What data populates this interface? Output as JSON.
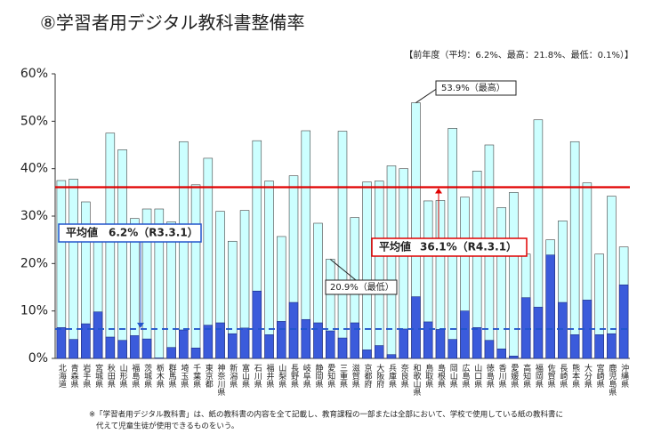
{
  "chart_data": {
    "type": "bar",
    "title": "⑧学習者用デジタル教科書整備率",
    "note": "【前年度（平均：6.2%、最高：21.8%、最低：0.1%）】",
    "footnote": [
      "※「学習者用デジタル教科書」は、紙の教科書の内容を全て記載し、教育課程の一部または全部において、学校で使用している紙の教科書に",
      "代えて児童生徒が使用できるものをいう。"
    ],
    "categories": [
      "北海道",
      "青森県",
      "岩手県",
      "宮城県",
      "秋田県",
      "山形県",
      "福島県",
      "茨城県",
      "栃木県",
      "群馬県",
      "埼玉県",
      "千葉県",
      "東京都",
      "神奈川県",
      "新潟県",
      "富山県",
      "石川県",
      "福井県",
      "山梨県",
      "長野県",
      "岐阜県",
      "静岡県",
      "愛知県",
      "三重県",
      "滋賀県",
      "京都府",
      "大阪府",
      "兵庫県",
      "奈良県",
      "和歌山県",
      "鳥取県",
      "島根県",
      "岡山県",
      "広島県",
      "山口県",
      "徳島県",
      "香川県",
      "愛媛県",
      "高知県",
      "福岡県",
      "佐賀県",
      "長崎県",
      "熊本県",
      "大分県",
      "宮崎県",
      "鹿児島県",
      "沖縄県"
    ],
    "series": [
      {
        "color": "#ccffff",
        "values": [
          37.5,
          37.8,
          33,
          25,
          47.5,
          44,
          29.5,
          31.5,
          31.5,
          28.8,
          45.7,
          36.6,
          42.2,
          31,
          24.7,
          31.2,
          45.9,
          37.4,
          25.7,
          38.5,
          48,
          28.5,
          20.9,
          47.9,
          29.7,
          37.2,
          37.4,
          40.6,
          40,
          53.9,
          33.2,
          33.3,
          48.5,
          34,
          39.5,
          45,
          31.8,
          35,
          22,
          50.3,
          25,
          29,
          45.7,
          37,
          22,
          34.2,
          23.5
        ]
      },
      {
        "color": "#3b5bdb",
        "values": [
          6.5,
          4,
          7.3,
          9.8,
          4.5,
          3.8,
          4.8,
          4.1,
          0.1,
          2.3,
          6,
          2.2,
          7,
          7.5,
          5.2,
          6.4,
          14.2,
          5,
          7.8,
          11.8,
          8.2,
          7.5,
          5.8,
          4.3,
          7.5,
          1.8,
          2.7,
          0.8,
          6.2,
          13,
          7.7,
          6.1,
          4,
          10,
          6.5,
          3.8,
          2,
          0.5,
          12.8,
          10.8,
          21.8,
          11.8,
          5,
          12.3,
          5,
          5.2,
          15.5
        ]
      }
    ],
    "ylim": [
      0,
      60
    ],
    "yticks": [
      {
        "value": 0,
        "label": "0%"
      },
      {
        "value": 10,
        "label": "10%"
      },
      {
        "value": 20,
        "label": "20%"
      },
      {
        "value": 30,
        "label": "30%"
      },
      {
        "value": 40,
        "label": "40%"
      },
      {
        "value": 50,
        "label": "50%"
      },
      {
        "value": 60,
        "label": "60%"
      }
    ],
    "average_lines": [
      {
        "label": "平均値",
        "value_label": "36.1%（R4.3.1）",
        "value": 36.1,
        "color": "#e00000"
      },
      {
        "label": "平均値",
        "value_label": "6.2%（R3.3.1）",
        "value": 6.2,
        "color": "#2255cc",
        "dashed": true
      }
    ],
    "annotations": [
      "53.9%（最高）",
      "20.9%（最低）"
    ]
  }
}
